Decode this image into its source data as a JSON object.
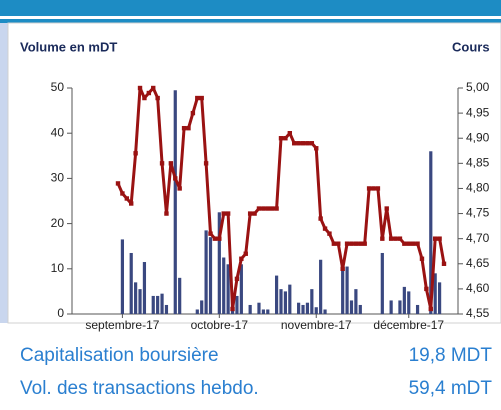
{
  "chart_data": {
    "type": "combo",
    "ylabel": "Volume en mDT",
    "y2label": "Cours",
    "categories": [
      null,
      "septembre-17",
      null,
      null,
      null,
      null,
      null,
      null,
      null,
      null,
      null,
      null,
      null,
      null,
      null,
      null,
      null,
      null,
      null,
      null,
      null,
      null,
      null,
      "octobre-17",
      null,
      null,
      null,
      null,
      null,
      null,
      null,
      null,
      null,
      null,
      null,
      null,
      null,
      null,
      null,
      null,
      null,
      null,
      null,
      null,
      null,
      "novembre-17",
      null,
      null,
      null,
      null,
      null,
      null,
      null,
      null,
      null,
      null,
      null,
      null,
      null,
      null,
      null,
      null,
      null,
      null,
      null,
      null,
      "décembre-17",
      null,
      null,
      null,
      null,
      null,
      null,
      null,
      null
    ],
    "ylim": [
      0,
      50
    ],
    "yticks": [
      0,
      10,
      20,
      30,
      40,
      50
    ],
    "y2lim": [
      4.55,
      5.0
    ],
    "y2ticks": [
      {
        "value": 4.55,
        "label": "4,55"
      },
      {
        "value": 4.6,
        "label": "4,60"
      },
      {
        "value": 4.65,
        "label": "4,65"
      },
      {
        "value": 4.7,
        "label": "4,70"
      },
      {
        "value": 4.75,
        "label": "4,75"
      },
      {
        "value": 4.8,
        "label": "4,80"
      },
      {
        "value": 4.85,
        "label": "4,85"
      },
      {
        "value": 4.9,
        "label": "4,90"
      },
      {
        "value": 4.95,
        "label": "4,95"
      },
      {
        "value": 5.0,
        "label": "5,00"
      }
    ],
    "series": [
      {
        "type": "bar",
        "color": "#3a4880",
        "values": [
          0,
          16.5,
          0,
          13.5,
          7,
          5.5,
          11.5,
          0,
          4,
          4,
          4.5,
          2,
          0,
          49.5,
          8,
          0,
          0,
          0,
          1,
          3,
          18.5,
          17,
          0,
          22.5,
          12.5,
          11,
          3,
          4,
          11,
          0,
          2,
          0,
          2.5,
          1,
          1,
          0,
          8.5,
          5.5,
          5,
          6.5,
          0,
          2.5,
          2,
          2.5,
          5.5,
          1.5,
          12,
          1,
          0,
          0,
          0,
          11,
          10.5,
          3,
          5.5,
          2,
          0,
          0,
          0,
          0,
          13.5,
          0,
          3,
          0,
          3,
          6,
          5,
          0,
          2,
          0,
          0,
          36,
          9,
          7,
          0
        ]
      },
      {
        "type": "line",
        "axis": "y2",
        "color": "#9a1212",
        "values": [
          4.81,
          4.79,
          4.78,
          4.77,
          4.87,
          5.0,
          4.98,
          4.99,
          5.0,
          4.98,
          4.85,
          4.75,
          4.85,
          4.82,
          4.8,
          4.92,
          4.92,
          4.95,
          4.98,
          4.98,
          4.85,
          4.71,
          4.7,
          4.7,
          4.75,
          4.75,
          4.56,
          4.62,
          4.66,
          4.67,
          4.75,
          4.75,
          4.76,
          4.76,
          4.76,
          4.76,
          4.76,
          4.9,
          4.9,
          4.91,
          4.89,
          4.89,
          4.89,
          4.89,
          4.89,
          4.88,
          4.74,
          4.72,
          4.71,
          4.69,
          4.69,
          4.64,
          4.69,
          4.69,
          4.69,
          4.69,
          4.69,
          4.8,
          4.8,
          4.8,
          4.7,
          4.76,
          4.7,
          4.7,
          4.7,
          4.69,
          4.69,
          4.69,
          4.69,
          4.66,
          4.6,
          4.56,
          4.7,
          4.7,
          4.65
        ]
      }
    ]
  },
  "stats": [
    {
      "label": "Capitalisation boursière",
      "value": "19,8 MDT"
    },
    {
      "label": "Vol. des transactions hebdo.",
      "value": "59,4 mDT"
    }
  ]
}
